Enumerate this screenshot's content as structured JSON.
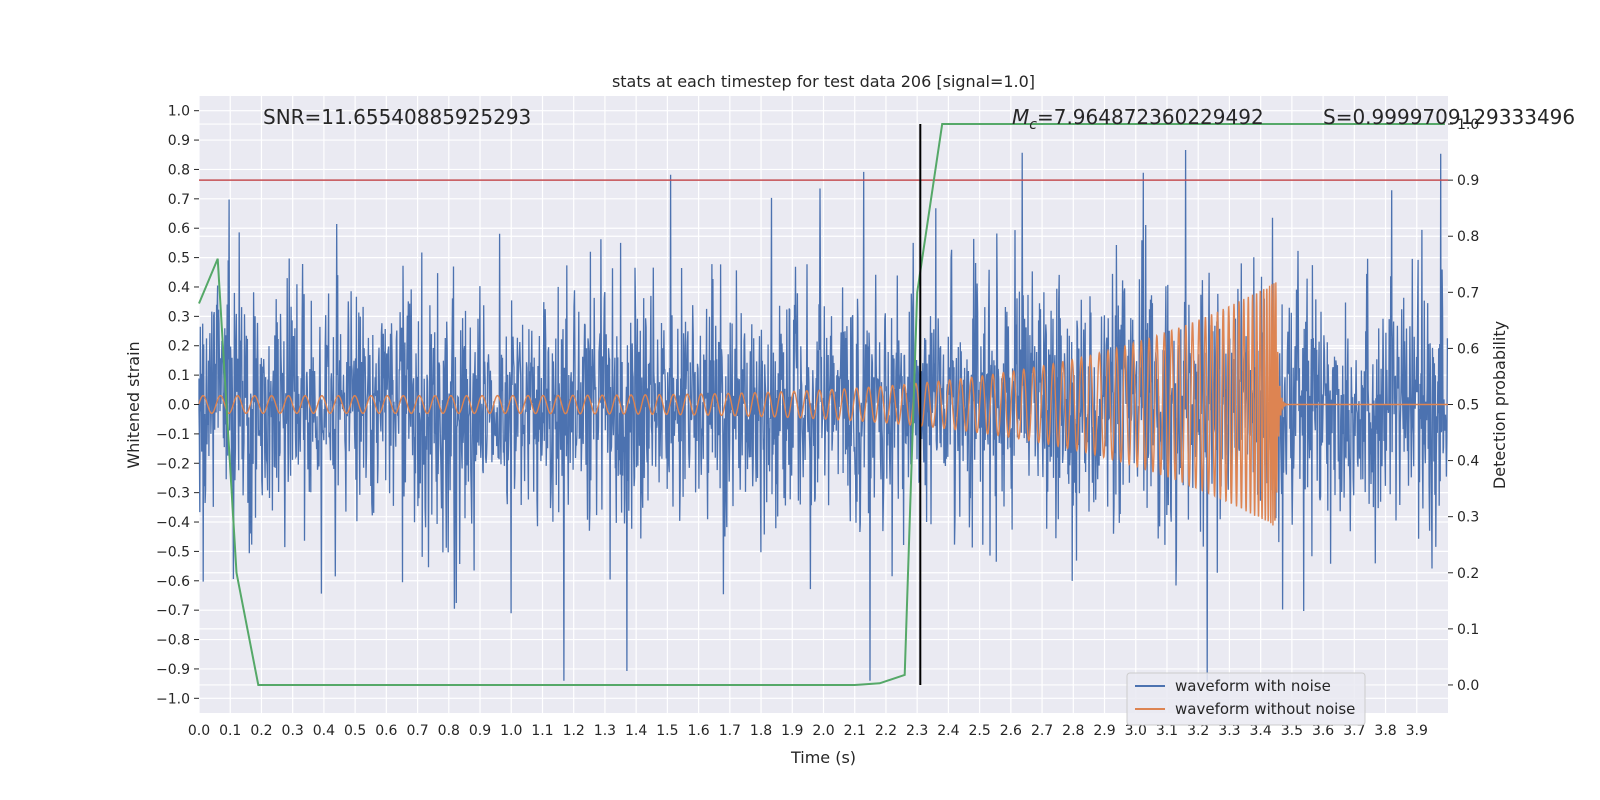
{
  "chart_data": {
    "type": "line",
    "title": "stats at each timestep for test data 206 [signal=1.0]",
    "xlabel": "Time (s)",
    "ylabel": "Whitened strain",
    "ylabel_right": "Detection probability",
    "xlim": [
      0.0,
      4.0
    ],
    "ylim": [
      -1.05,
      1.05
    ],
    "ylim_right": [
      -0.05,
      1.05
    ],
    "x_ticks": [
      "0.0",
      "0.1",
      "0.2",
      "0.3",
      "0.4",
      "0.5",
      "0.6",
      "0.7",
      "0.8",
      "0.9",
      "1.0",
      "1.1",
      "1.2",
      "1.3",
      "1.4",
      "1.5",
      "1.6",
      "1.7",
      "1.8",
      "1.9",
      "2.0",
      "2.1",
      "2.2",
      "2.3",
      "2.4",
      "2.5",
      "2.6",
      "2.7",
      "2.8",
      "2.9",
      "3.0",
      "3.1",
      "3.2",
      "3.3",
      "3.4",
      "3.5",
      "3.6",
      "3.7",
      "3.8",
      "3.9"
    ],
    "y_ticks": [
      "1.0",
      "0.9",
      "0.8",
      "0.7",
      "0.6",
      "0.5",
      "0.4",
      "0.3",
      "0.2",
      "0.1",
      "0.0",
      "−0.1",
      "−0.2",
      "−0.3",
      "−0.4",
      "−0.5",
      "−0.6",
      "−0.7",
      "−0.8",
      "−0.9",
      "−1.0"
    ],
    "y_ticks_right": [
      "1.0",
      "0.9",
      "0.8",
      "0.7",
      "0.6",
      "0.5",
      "0.4",
      "0.3",
      "0.2",
      "0.1",
      "0.0"
    ],
    "grid": true,
    "background": "#EAEAF2",
    "annotations": {
      "snr": "SNR=11.65540885925293",
      "mc_symbol": "M",
      "mc_sub": "c",
      "mc_value": "=7.964872360229492",
      "s": "S=0.9999709129333496"
    },
    "threshold_line": {
      "y_right": 0.9,
      "color": "#C44E52"
    },
    "event_line": {
      "x": 2.31,
      "color": "#000000"
    },
    "series": [
      {
        "name": "waveform with noise",
        "color": "#4C72B0",
        "axis": "left",
        "description_values": {
          "typical_amplitude": 0.3,
          "max": 1.0,
          "min": -0.94
        }
      },
      {
        "name": "waveform without noise",
        "color": "#DD8452",
        "axis": "left",
        "chirp": {
          "start_amplitude": 0.03,
          "peak_amplitude": 0.42,
          "merger_time": 3.45,
          "f_start": 18,
          "f_end": 160
        }
      },
      {
        "name": "",
        "color": "#55A868",
        "axis": "right",
        "x": [
          0.0,
          0.06,
          0.12,
          0.19,
          0.26,
          2.1,
          2.18,
          2.26,
          2.3,
          2.38,
          3.99
        ],
        "y": [
          0.68,
          0.76,
          0.2,
          0.0,
          0.0,
          0.0,
          0.003,
          0.018,
          0.7,
          1.0,
          1.0
        ]
      }
    ],
    "legend": {
      "placement": "lower right",
      "entries": [
        "waveform with noise",
        "waveform without noise"
      ]
    }
  }
}
